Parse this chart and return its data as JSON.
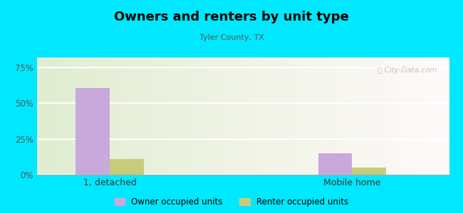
{
  "title": "Owners and renters by unit type",
  "subtitle": "Tyler County, TX",
  "categories": [
    "1, detached",
    "Mobile home"
  ],
  "owner_values": [
    60.5,
    15.0
  ],
  "renter_values": [
    11.0,
    5.0
  ],
  "owner_color": "#c9a8dc",
  "renter_color": "#c8cc7a",
  "yticks": [
    0,
    25,
    50,
    75
  ],
  "ytick_labels": [
    "0%",
    "25%",
    "50%",
    "75%"
  ],
  "ylim": [
    0,
    82
  ],
  "bar_width": 0.28,
  "background_outer": "#00e8ff",
  "legend_owner": "Owner occupied units",
  "legend_renter": "Renter occupied units",
  "watermark": "Ⓢ City-Data.com",
  "x_positions": [
    0.5,
    2.5
  ],
  "xlim": [
    -0.1,
    3.3
  ]
}
